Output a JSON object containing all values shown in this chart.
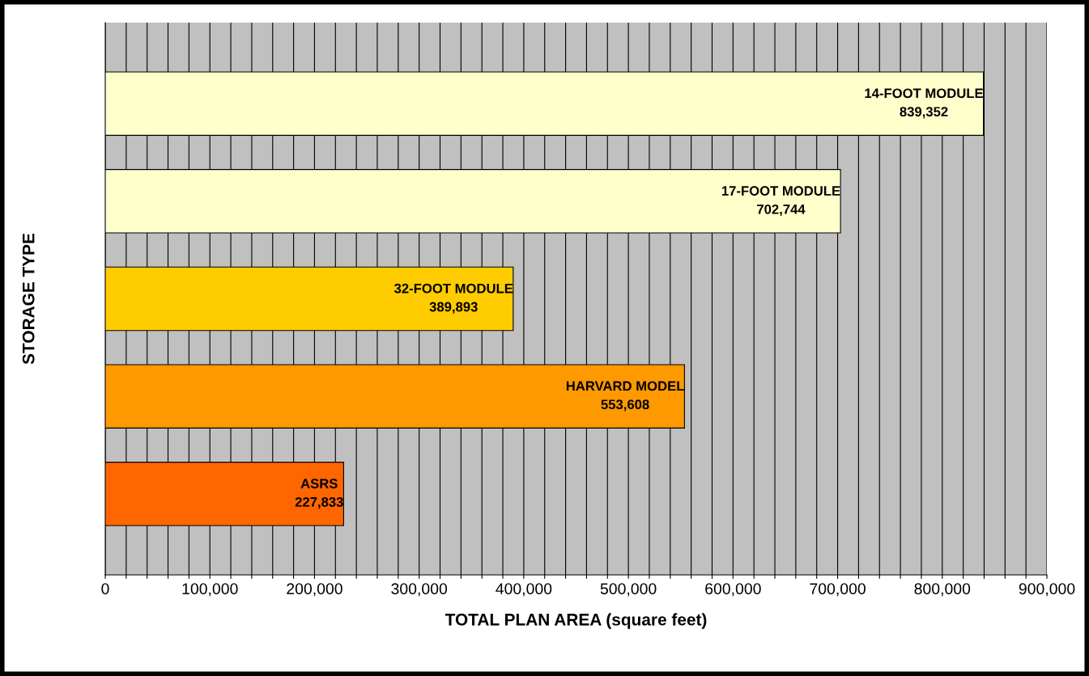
{
  "chart_data": {
    "type": "bar",
    "orientation": "horizontal",
    "categories": [
      "14-FOOT MODULE",
      "17-FOOT MODULE",
      "32-FOOT MODULE",
      "HARVARD MODEL",
      "ASRS"
    ],
    "values": [
      839352,
      702744,
      389893,
      553608,
      227833
    ],
    "value_labels": [
      "839,352",
      "702,744",
      "389,893",
      "553,608",
      "227,833"
    ],
    "colors": [
      "#ffffcc",
      "#ffffcc",
      "#ffcc00",
      "#ff9900",
      "#ff6600"
    ],
    "xlabel": "TOTAL PLAN AREA (square feet)",
    "ylabel": "STORAGE TYPE",
    "xlim": [
      0,
      900000
    ],
    "xticks": [
      0,
      {
        "value": 20000,
        "label": null
      },
      {
        "value": 40000,
        "label": null
      },
      {
        "value": 60000,
        "label": null
      },
      {
        "value": 80000,
        "label": null
      },
      {
        "value": 100000,
        "label": "100,000"
      },
      {
        "value": 120000,
        "label": null
      },
      {
        "value": 140000,
        "label": null
      },
      {
        "value": 160000,
        "label": null
      },
      {
        "value": 180000,
        "label": null
      },
      {
        "value": 200000,
        "label": "200,000"
      },
      {
        "value": 220000,
        "label": null
      },
      {
        "value": 240000,
        "label": null
      },
      {
        "value": 260000,
        "label": null
      },
      {
        "value": 280000,
        "label": null
      },
      {
        "value": 300000,
        "label": "300,000"
      },
      {
        "value": 320000,
        "label": null
      },
      {
        "value": 340000,
        "label": null
      },
      {
        "value": 360000,
        "label": null
      },
      {
        "value": 380000,
        "label": null
      },
      {
        "value": 400000,
        "label": "400,000"
      },
      {
        "value": 420000,
        "label": null
      },
      {
        "value": 440000,
        "label": null
      },
      {
        "value": 460000,
        "label": null
      },
      {
        "value": 480000,
        "label": null
      },
      {
        "value": 500000,
        "label": "500,000"
      },
      {
        "value": 520000,
        "label": null
      },
      {
        "value": 540000,
        "label": null
      },
      {
        "value": 560000,
        "label": null
      },
      {
        "value": 580000,
        "label": null
      },
      {
        "value": 600000,
        "label": "600,000"
      },
      {
        "value": 620000,
        "label": null
      },
      {
        "value": 640000,
        "label": null
      },
      {
        "value": 660000,
        "label": null
      },
      {
        "value": 680000,
        "label": null
      },
      {
        "value": 700000,
        "label": "700,000"
      },
      {
        "value": 720000,
        "label": null
      },
      {
        "value": 740000,
        "label": null
      },
      {
        "value": 760000,
        "label": null
      },
      {
        "value": 780000,
        "label": null
      },
      {
        "value": 800000,
        "label": "800,000"
      },
      {
        "value": 820000,
        "label": null
      },
      {
        "value": 840000,
        "label": null
      },
      {
        "value": 860000,
        "label": null
      },
      {
        "value": 880000,
        "label": null
      },
      {
        "value": 900000,
        "label": "900,000"
      }
    ],
    "grid": "x",
    "tick_labels": "x",
    "legend": false
  }
}
